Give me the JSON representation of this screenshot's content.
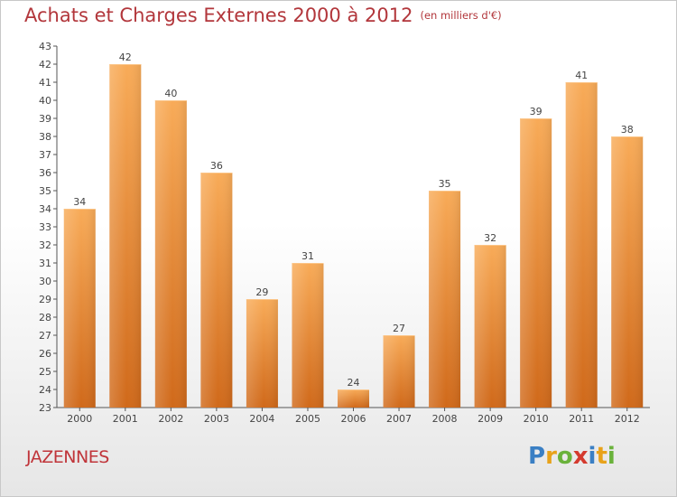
{
  "header": {
    "title": "Achats et Charges Externes 2000 à 2012",
    "unit": "(en milliers d'€)"
  },
  "footer": {
    "commune": "JAZENNES",
    "brand": "Proxiti"
  },
  "colors": {
    "title": "#b2363b",
    "bar_light": "#f6a551",
    "bar_dark": "#d6711c",
    "axis": "#555555",
    "brand_letters": [
      "#3a7fc4",
      "#e8a21a",
      "#6ab23b",
      "#d43a2e",
      "#3a7fc4",
      "#e8a21a",
      "#6ab23b"
    ]
  },
  "chart_data": {
    "type": "bar",
    "title": "Achats et Charges Externes 2000 à 2012",
    "subtitle": "(en milliers d'€)",
    "xlabel": "",
    "ylabel": "",
    "categories": [
      "2000",
      "2001",
      "2002",
      "2003",
      "2004",
      "2005",
      "2006",
      "2007",
      "2008",
      "2009",
      "2010",
      "2011",
      "2012"
    ],
    "values": [
      34,
      42,
      40,
      36,
      29,
      31,
      24,
      27,
      35,
      32,
      39,
      41,
      38
    ],
    "ylim": [
      23,
      43
    ],
    "yticks": [
      23,
      24,
      25,
      26,
      27,
      28,
      29,
      30,
      31,
      32,
      33,
      34,
      35,
      36,
      37,
      38,
      39,
      40,
      41,
      42,
      43
    ],
    "grid": false,
    "data_labels": true
  }
}
